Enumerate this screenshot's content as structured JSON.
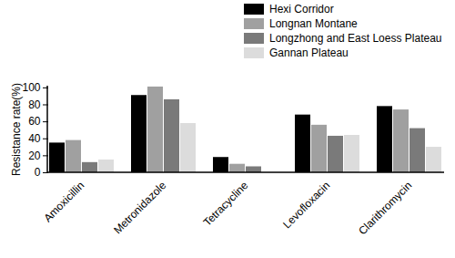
{
  "chart_data": {
    "type": "bar",
    "categories": [
      "Amoxicillin",
      "Metronidazole",
      "Tetracycline",
      "Levofloxacin",
      "Clarithromycin"
    ],
    "series": [
      {
        "name": "Hexi Corridor",
        "color": "#000000",
        "values": [
          35,
          91,
          18,
          68,
          78
        ]
      },
      {
        "name": "Longnan Montane",
        "color": "#a0a0a0",
        "values": [
          38,
          101,
          10,
          56,
          74
        ]
      },
      {
        "name": "Longzhong and East Loess Plateau",
        "color": "#7a7a7a",
        "values": [
          12,
          86,
          7,
          43,
          52
        ]
      },
      {
        "name": "Gannan Plateau",
        "color": "#dcdcdc",
        "values": [
          15,
          58,
          0,
          44,
          30
        ]
      }
    ],
    "y_label": "Resistance rate(%)",
    "ylim": [
      0,
      102
    ],
    "yticks": [
      0,
      20,
      40,
      60,
      80,
      100
    ],
    "grid": false,
    "legend": "top-right"
  }
}
